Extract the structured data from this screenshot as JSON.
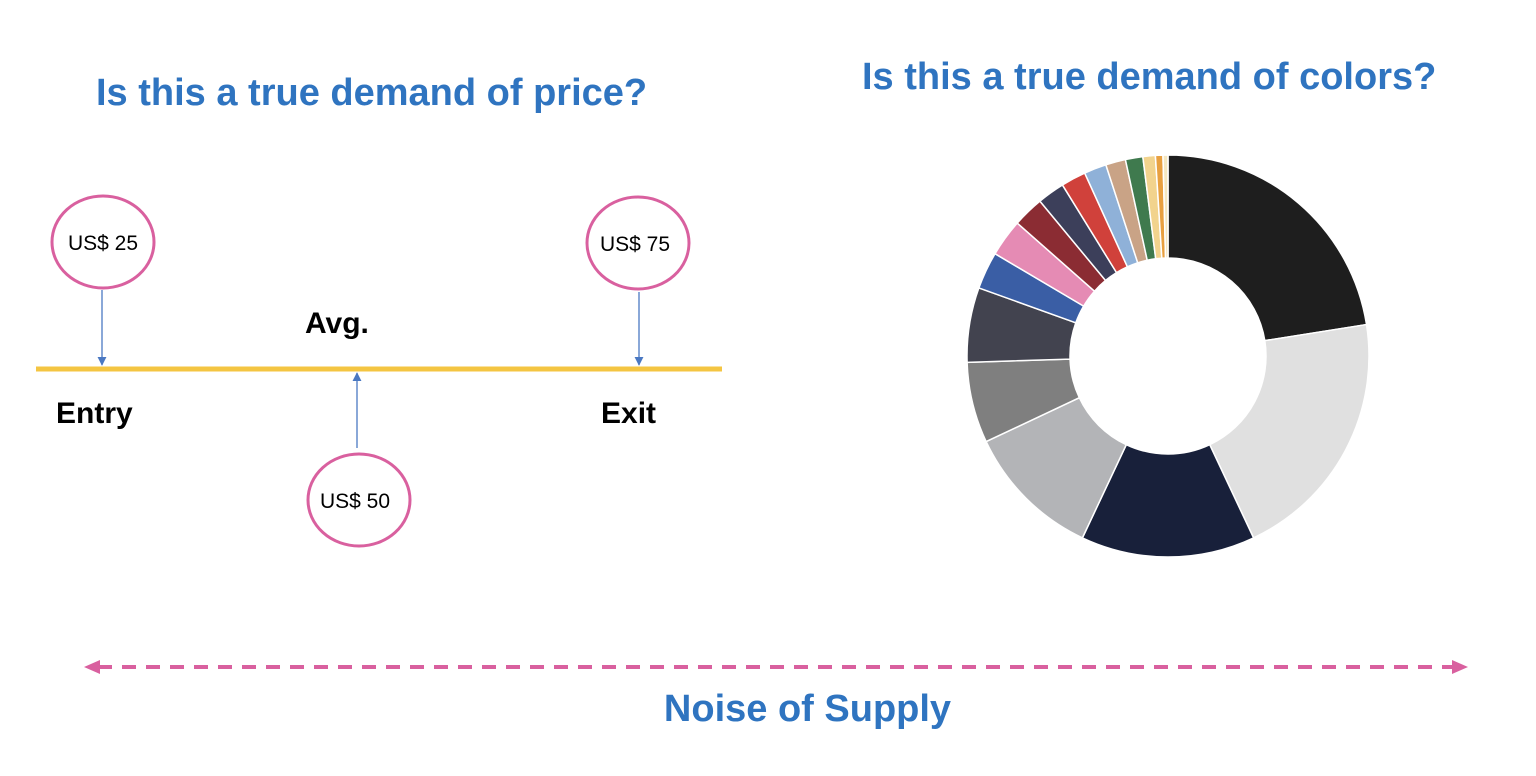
{
  "titles": {
    "price_question": "Is this a true demand of price?",
    "colors_question": "Is this a true demand of colors?",
    "footer": "Noise of Supply"
  },
  "price_line": {
    "avg_label": "Avg.",
    "entry_label": "Entry",
    "exit_label": "Exit",
    "entry_price": "US$ 25",
    "avg_price": "US$ 50",
    "exit_price": "US$ 75"
  },
  "colors": {
    "title_blue": "#2f74c0",
    "line_yellow": "#f4c542",
    "circle_pink": "#d9609f",
    "arrow_blue": "#4a78c2",
    "supply_pink": "#d9609f"
  },
  "chart_data": {
    "type": "pie",
    "donut": true,
    "slices": [
      {
        "value": 22.5,
        "color": "#1e1e1e"
      },
      {
        "value": 20.5,
        "color": "#e0e0e0"
      },
      {
        "value": 14.0,
        "color": "#18203a"
      },
      {
        "value": 11.0,
        "color": "#b3b4b7"
      },
      {
        "value": 6.5,
        "color": "#7f7f7f"
      },
      {
        "value": 6.0,
        "color": "#42434f"
      },
      {
        "value": 3.0,
        "color": "#3a5ea5"
      },
      {
        "value": 3.0,
        "color": "#e58bb4"
      },
      {
        "value": 2.5,
        "color": "#8b2c33"
      },
      {
        "value": 2.2,
        "color": "#3c3f5a"
      },
      {
        "value": 2.0,
        "color": "#d0413b"
      },
      {
        "value": 1.8,
        "color": "#8fb1d8"
      },
      {
        "value": 1.6,
        "color": "#c9a386"
      },
      {
        "value": 1.4,
        "color": "#3f7a4e"
      },
      {
        "value": 1.0,
        "color": "#f2d38d"
      },
      {
        "value": 0.6,
        "color": "#e8a040"
      },
      {
        "value": 0.4,
        "color": "#f5e7c0"
      }
    ]
  }
}
